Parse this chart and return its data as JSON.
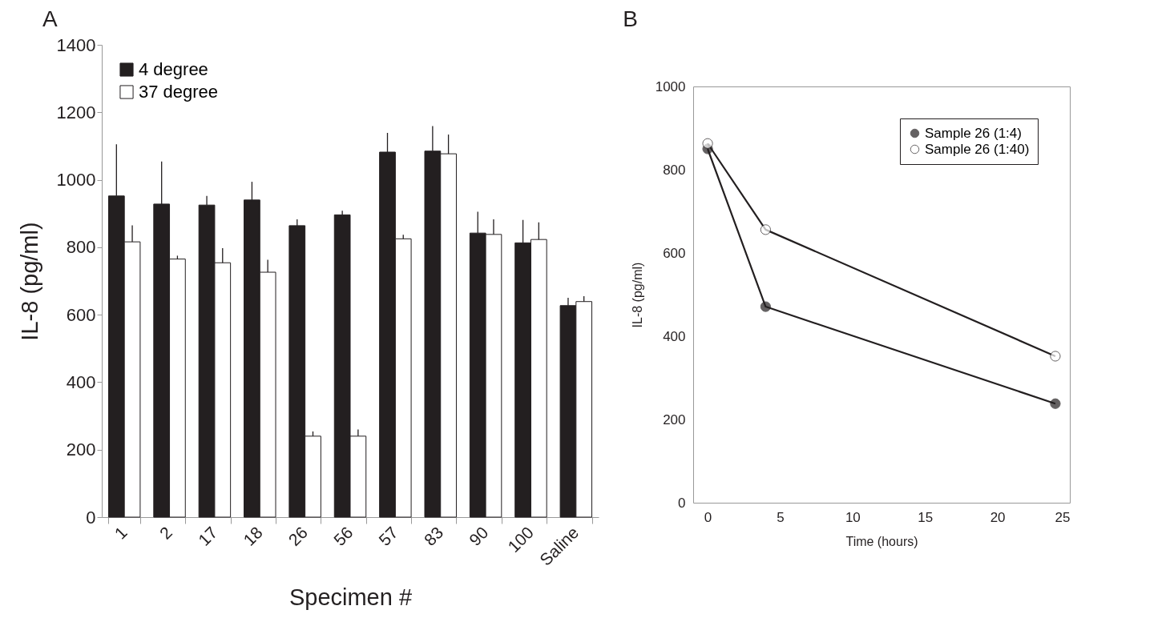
{
  "chart_data": [
    {
      "type": "bar",
      "title": "A",
      "xlabel": "Specimen #",
      "ylabel": "IL-8 (pg/ml)",
      "categories": [
        "1",
        "2",
        "17",
        "18",
        "26",
        "56",
        "57",
        "83",
        "90",
        "100",
        "Saline"
      ],
      "series": [
        {
          "name": "4 degree",
          "color": "#231f20",
          "values": [
            952,
            928,
            925,
            940,
            864,
            896,
            1082,
            1085,
            842,
            813,
            627
          ],
          "errors": [
            [
              952,
              1105
            ],
            [
              928,
              1054
            ],
            [
              925,
              952
            ],
            [
              940,
              994
            ],
            [
              864,
              883
            ],
            [
              896,
              908
            ],
            [
              1082,
              1139
            ],
            [
              1085,
              1159
            ],
            [
              842,
              905
            ],
            [
              813,
              881
            ],
            [
              627,
              650
            ]
          ]
        },
        {
          "name": "37 degree",
          "color": "#ffffff",
          "values": [
            816,
            765,
            754,
            726,
            240,
            240,
            825,
            1077,
            838,
            823,
            639
          ],
          "errors": [
            [
              816,
              865
            ],
            [
              765,
              775
            ],
            [
              754,
              797
            ],
            [
              726,
              763
            ],
            [
              240,
              254
            ],
            [
              240,
              260
            ],
            [
              825,
              837
            ],
            [
              1077,
              1134
            ],
            [
              838,
              883
            ],
            [
              823,
              874
            ],
            [
              639,
              655
            ]
          ]
        }
      ],
      "ylim": [
        0,
        1400
      ],
      "yticks": [
        0,
        200,
        400,
        600,
        800,
        1000,
        1200,
        1400
      ],
      "grid": false,
      "legend": "top left"
    },
    {
      "type": "line",
      "title": "B",
      "xlabel": "Time (hours)",
      "ylabel": "IL-8 (pg/ml)",
      "series": [
        {
          "name": "Sample 26 (1:4)",
          "color": "#231f20",
          "x": [
            0,
            4,
            24
          ],
          "values": [
            850,
            471,
            238
          ]
        },
        {
          "name": "Sample 26 (1:40)",
          "color": "#ffffff",
          "x": [
            0,
            4,
            24
          ],
          "values": [
            863,
            656,
            352
          ]
        }
      ],
      "xlim": [
        -1,
        25
      ],
      "xticks": [
        0,
        5,
        10,
        15,
        20,
        25
      ],
      "ylim": [
        0,
        1000
      ],
      "yticks": [
        0,
        200,
        400,
        600,
        800,
        1000
      ],
      "grid": false,
      "legend": "top right",
      "marker": "circle",
      "line_style": "solid"
    }
  ]
}
